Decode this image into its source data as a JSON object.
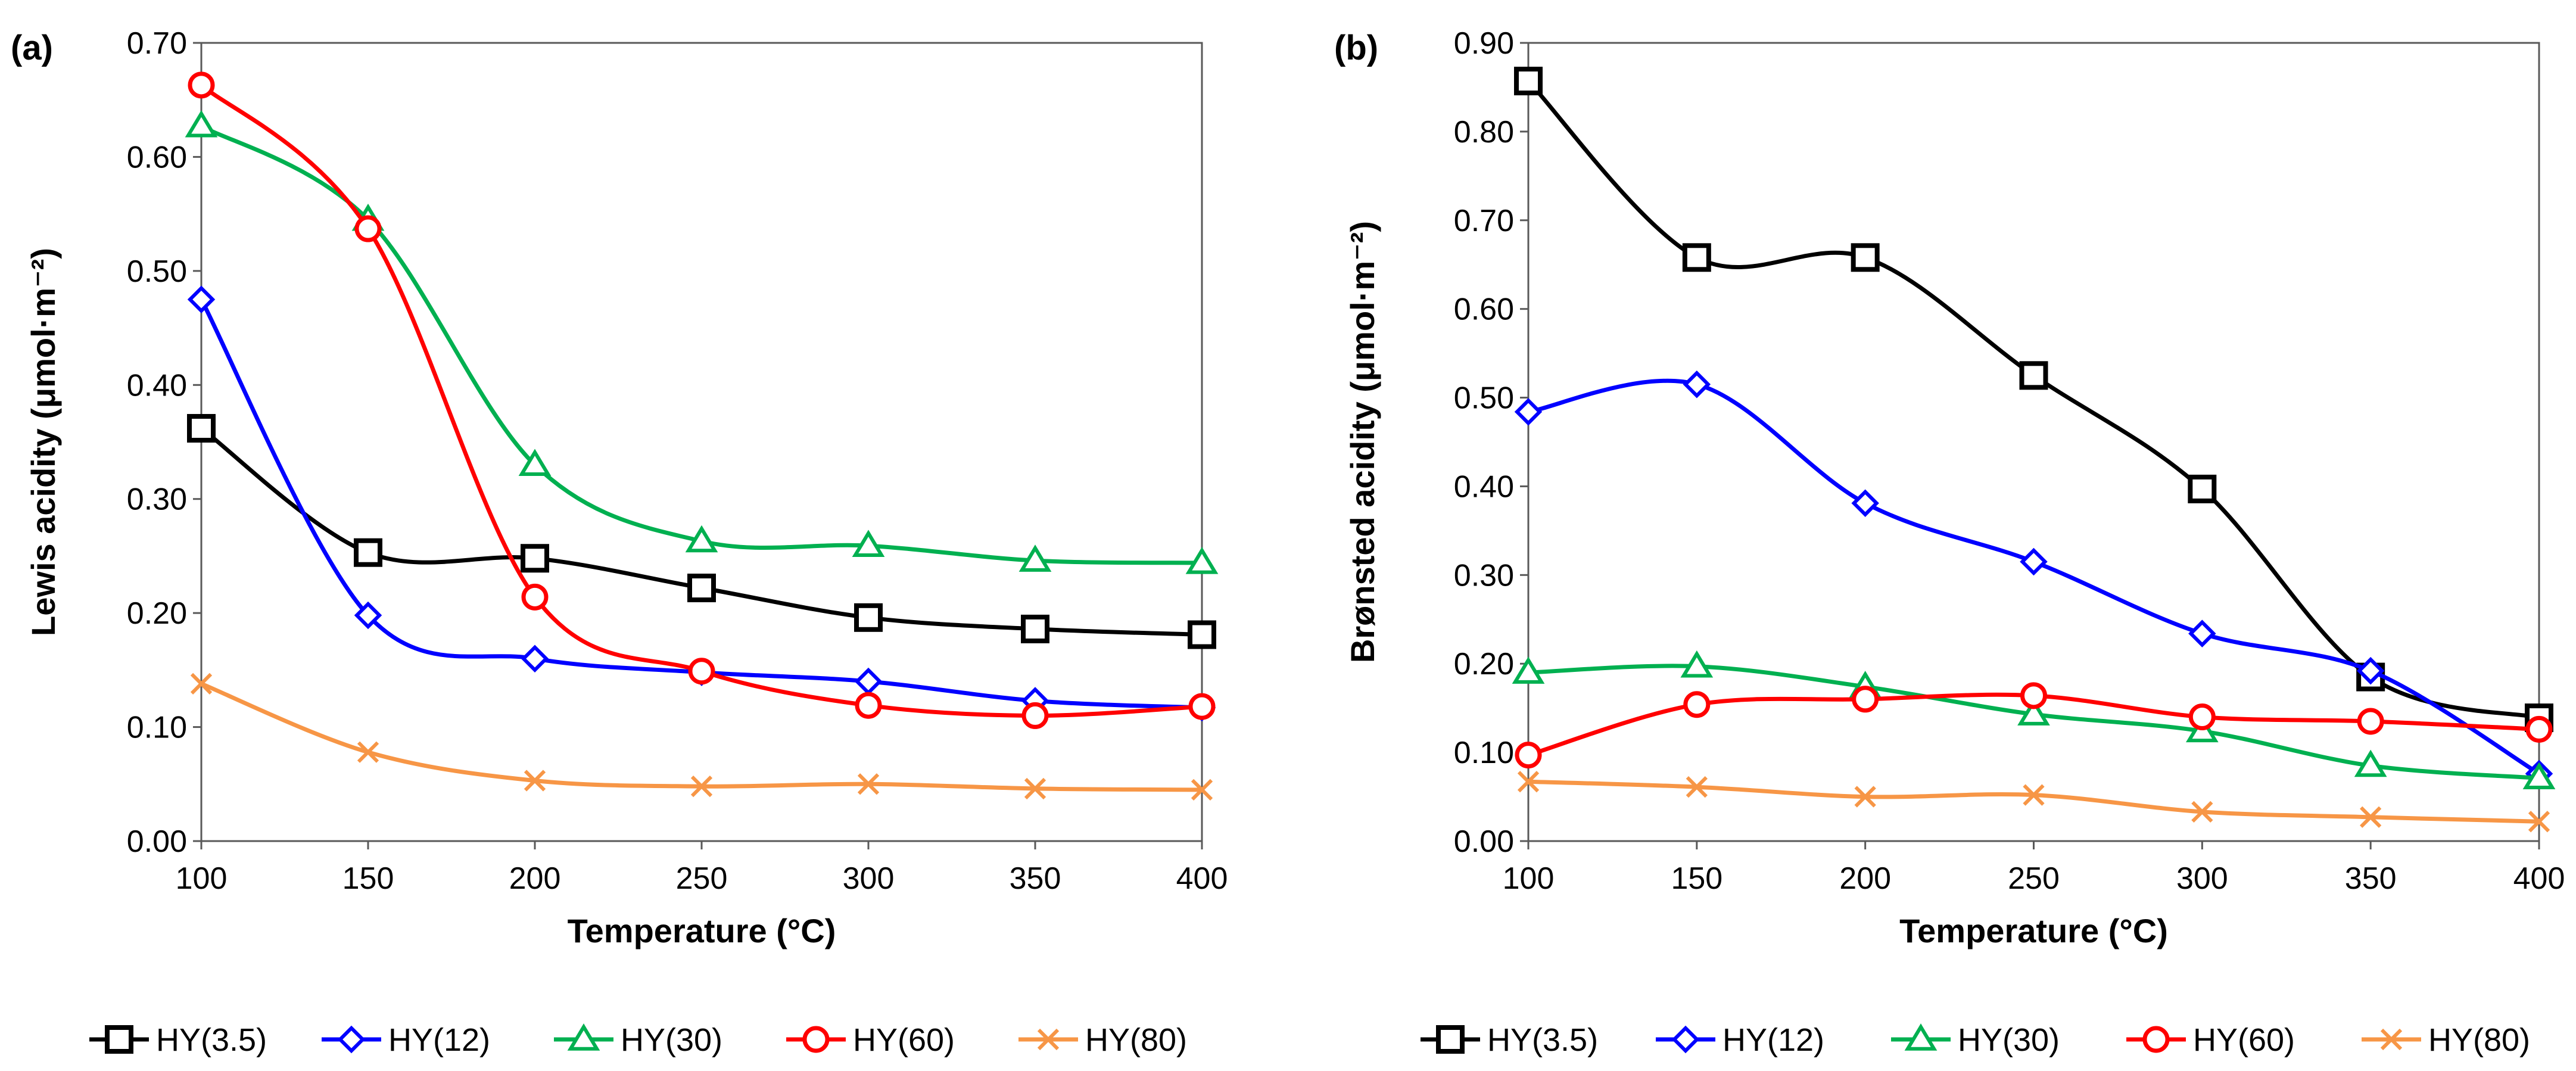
{
  "chart_data": [
    {
      "panel_label": "(a)",
      "type": "line",
      "title": "",
      "xlabel": "Temperature (°C)",
      "ylabel": "Lewis acidity (μmol·m⁻²)",
      "xlim": [
        100,
        400
      ],
      "ylim": [
        0.0,
        0.7
      ],
      "xticks": [
        100,
        150,
        200,
        250,
        300,
        350,
        400
      ],
      "xtick_labels": [
        "100",
        "150",
        "200",
        "250",
        "300",
        "350",
        "400"
      ],
      "yticks": [
        0.0,
        0.1,
        0.2,
        0.3,
        0.4,
        0.5,
        0.6,
        0.7
      ],
      "ytick_labels": [
        "0.00",
        "0.10",
        "0.20",
        "0.30",
        "0.40",
        "0.50",
        "0.60",
        "0.70"
      ],
      "grid": false,
      "legend_position": "bottom",
      "x": [
        100,
        150,
        200,
        250,
        300,
        350,
        400
      ],
      "series": [
        {
          "name": "HY(3.5)",
          "color": "#000000",
          "marker": "square",
          "values": [
            0.362,
            0.253,
            0.248,
            0.222,
            0.196,
            0.186,
            0.181
          ]
        },
        {
          "name": "HY(12)",
          "color": "#0000ff",
          "marker": "diamond",
          "values": [
            0.475,
            0.198,
            0.16,
            0.148,
            0.14,
            0.123,
            0.117
          ]
        },
        {
          "name": "HY(30)",
          "color": "#00b050",
          "marker": "triangle",
          "values": [
            0.627,
            0.545,
            0.33,
            0.263,
            0.259,
            0.246,
            0.244
          ]
        },
        {
          "name": "HY(60)",
          "color": "#ff0000",
          "marker": "circle",
          "values": [
            0.663,
            0.537,
            0.214,
            0.149,
            0.119,
            0.11,
            0.118
          ]
        },
        {
          "name": "HY(80)",
          "color": "#f79646",
          "marker": "x",
          "values": [
            0.138,
            0.078,
            0.053,
            0.048,
            0.05,
            0.046,
            0.045
          ]
        }
      ]
    },
    {
      "panel_label": "(b)",
      "type": "line",
      "title": "",
      "xlabel": "Temperature (°C)",
      "ylabel": "Brønsted acidity (μmol·m⁻²)",
      "xlim": [
        100,
        400
      ],
      "ylim": [
        0.0,
        0.9
      ],
      "xticks": [
        100,
        150,
        200,
        250,
        300,
        350,
        400
      ],
      "xtick_labels": [
        "100",
        "150",
        "200",
        "250",
        "300",
        "350",
        "400"
      ],
      "yticks": [
        0.0,
        0.1,
        0.2,
        0.3,
        0.4,
        0.5,
        0.6,
        0.7,
        0.8,
        0.9
      ],
      "ytick_labels": [
        "0.00",
        "0.10",
        "0.20",
        "0.30",
        "0.40",
        "0.50",
        "0.60",
        "0.70",
        "0.80",
        "0.90"
      ],
      "grid": false,
      "legend_position": "bottom",
      "x": [
        100,
        150,
        200,
        250,
        300,
        350,
        400
      ],
      "series": [
        {
          "name": "HY(3.5)",
          "color": "#000000",
          "marker": "square",
          "values": [
            0.857,
            0.658,
            0.658,
            0.525,
            0.397,
            0.185,
            0.139
          ]
        },
        {
          "name": "HY(12)",
          "color": "#0000ff",
          "marker": "diamond",
          "values": [
            0.484,
            0.515,
            0.381,
            0.315,
            0.234,
            0.192,
            0.076
          ]
        },
        {
          "name": "HY(30)",
          "color": "#00b050",
          "marker": "triangle",
          "values": [
            0.19,
            0.197,
            0.174,
            0.143,
            0.124,
            0.085,
            0.071
          ]
        },
        {
          "name": "HY(60)",
          "color": "#ff0000",
          "marker": "circle",
          "values": [
            0.097,
            0.154,
            0.16,
            0.164,
            0.14,
            0.135,
            0.126
          ]
        },
        {
          "name": "HY(80)",
          "color": "#f79646",
          "marker": "x",
          "values": [
            0.067,
            0.061,
            0.05,
            0.052,
            0.033,
            0.027,
            0.022
          ]
        }
      ]
    }
  ]
}
